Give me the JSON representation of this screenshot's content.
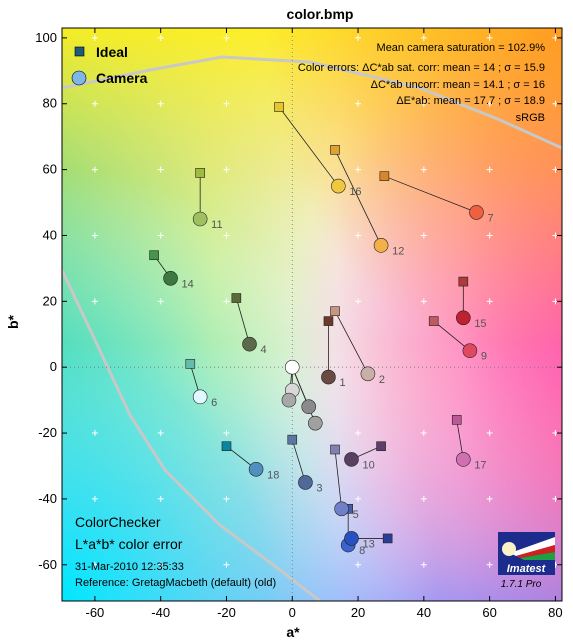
{
  "chart_data": {
    "type": "scatter",
    "title": "color.bmp",
    "xlabel": "a*",
    "ylabel": "b*",
    "xlim": [
      -70,
      82
    ],
    "ylim": [
      -71,
      103
    ],
    "xticks": [
      -60,
      -40,
      -20,
      0,
      20,
      40,
      60,
      80
    ],
    "yticks": [
      -60,
      -40,
      -20,
      0,
      20,
      40,
      60,
      80,
      100
    ],
    "grid": "dotted",
    "legend": [
      {
        "name": "Ideal",
        "marker": "square"
      },
      {
        "name": "Camera",
        "marker": "circle"
      }
    ],
    "legend_placement": "top-left",
    "stats": [
      "Mean camera saturation = 102.9%",
      "Color errors: ΔC*ab sat. corr:  mean = 14 ;  σ = 15.9",
      "ΔC*ab uncorr:  mean = 14.1 ;  σ = 16",
      "ΔE*ab:  mean = 17.7 ;  σ = 18.9",
      "sRGB"
    ],
    "info": {
      "name": "ColorChecker",
      "subtitle": "L*a*b* color error",
      "date": "31-Mar-2010 12:35:33",
      "reference": "Reference: GretagMacbeth (default) (old)"
    },
    "logo_text": "Imatest",
    "version": "1.7.1  Pro",
    "patches": [
      {
        "label": "1",
        "ideal": [
          11,
          14
        ],
        "camera": [
          11,
          -3
        ],
        "ideal_color": "#6a3a2a",
        "camera_color": "#6a4a42"
      },
      {
        "label": "2",
        "ideal": [
          13,
          17
        ],
        "camera": [
          23,
          -2
        ],
        "ideal_color": "#c8967e",
        "camera_color": "#c8b0a8"
      },
      {
        "label": "3",
        "ideal": [
          0,
          -22
        ],
        "camera": [
          4,
          -35
        ],
        "ideal_color": "#5a78a0",
        "camera_color": "#50699a"
      },
      {
        "label": "4",
        "ideal": [
          -17,
          21
        ],
        "camera": [
          -13,
          7
        ],
        "ideal_color": "#5a6a38",
        "camera_color": "#5a6a4a"
      },
      {
        "label": "5",
        "ideal": [
          13,
          -25
        ],
        "camera": [
          15,
          -43
        ],
        "ideal_color": "#8280b0",
        "camera_color": "#7080c8"
      },
      {
        "label": "6",
        "ideal": [
          -31,
          1
        ],
        "camera": [
          -28,
          -9
        ],
        "ideal_color": "#66bcaa",
        "camera_color": "#e0f8ff"
      },
      {
        "label": "7",
        "ideal": [
          28,
          58
        ],
        "camera": [
          56,
          47
        ],
        "ideal_color": "#d8862c",
        "camera_color": "#f06040"
      },
      {
        "label": "8",
        "ideal": [
          17,
          -43
        ],
        "camera": [
          17,
          -54
        ],
        "ideal_color": "#485ca8",
        "camera_color": "#3c64d0"
      },
      {
        "label": "9",
        "ideal": [
          43,
          14
        ],
        "camera": [
          54,
          5
        ],
        "ideal_color": "#c05a62",
        "camera_color": "#e04860"
      },
      {
        "label": "10",
        "ideal": [
          27,
          -24
        ],
        "camera": [
          18,
          -28
        ],
        "ideal_color": "#5e3c6c",
        "camera_color": "#5a4060"
      },
      {
        "label": "11",
        "ideal": [
          -28,
          59
        ],
        "camera": [
          -28,
          45
        ],
        "ideal_color": "#9ebc40",
        "camera_color": "#a0c060"
      },
      {
        "label": "12",
        "ideal": [
          13,
          66
        ],
        "camera": [
          27,
          37
        ],
        "ideal_color": "#e0a22e",
        "camera_color": "#f4b048"
      },
      {
        "label": "13",
        "ideal": [
          29,
          -52
        ],
        "camera": [
          18,
          -52
        ],
        "ideal_color": "#283e96",
        "camera_color": "#2850c0"
      },
      {
        "label": "14",
        "ideal": [
          -42,
          34
        ],
        "camera": [
          -37,
          27
        ],
        "ideal_color": "#469648",
        "camera_color": "#3c7840"
      },
      {
        "label": "15",
        "ideal": [
          52,
          26
        ],
        "camera": [
          52,
          15
        ],
        "ideal_color": "#b03a38",
        "camera_color": "#c02030"
      },
      {
        "label": "16",
        "ideal": [
          -4,
          79
        ],
        "camera": [
          14,
          55
        ],
        "ideal_color": "#e6c628",
        "camera_color": "#f0c840"
      },
      {
        "label": "17",
        "ideal": [
          50,
          -16
        ],
        "camera": [
          52,
          -28
        ],
        "ideal_color": "#bc5896",
        "camera_color": "#d070b0"
      },
      {
        "label": "18",
        "ideal": [
          -20,
          -24
        ],
        "camera": [
          -11,
          -31
        ],
        "ideal_color": "#0888a0",
        "camera_color": "#5090c0"
      },
      {
        "label": "",
        "ideal": [
          0,
          0
        ],
        "camera": [
          0,
          0
        ],
        "ideal_color": "#f4f4f4",
        "camera_color": "#ffffff"
      },
      {
        "label": "",
        "ideal": [
          0,
          0
        ],
        "camera": [
          0,
          -7
        ],
        "ideal_color": "#c8c8c8",
        "camera_color": "#d8d8d8"
      },
      {
        "label": "",
        "ideal": [
          0,
          0
        ],
        "camera": [
          -1,
          -10
        ],
        "ideal_color": "#a0a0a0",
        "camera_color": "#a8a8a8"
      },
      {
        "label": "",
        "ideal": [
          0,
          0
        ],
        "camera": [
          5,
          -12
        ],
        "ideal_color": "#7a7a7a",
        "camera_color": "#8a8a8a"
      },
      {
        "label": "",
        "ideal": [
          0,
          0
        ],
        "camera": [
          7,
          -17
        ],
        "ideal_color": "#555555",
        "camera_color": "#a0a0a0"
      }
    ]
  }
}
